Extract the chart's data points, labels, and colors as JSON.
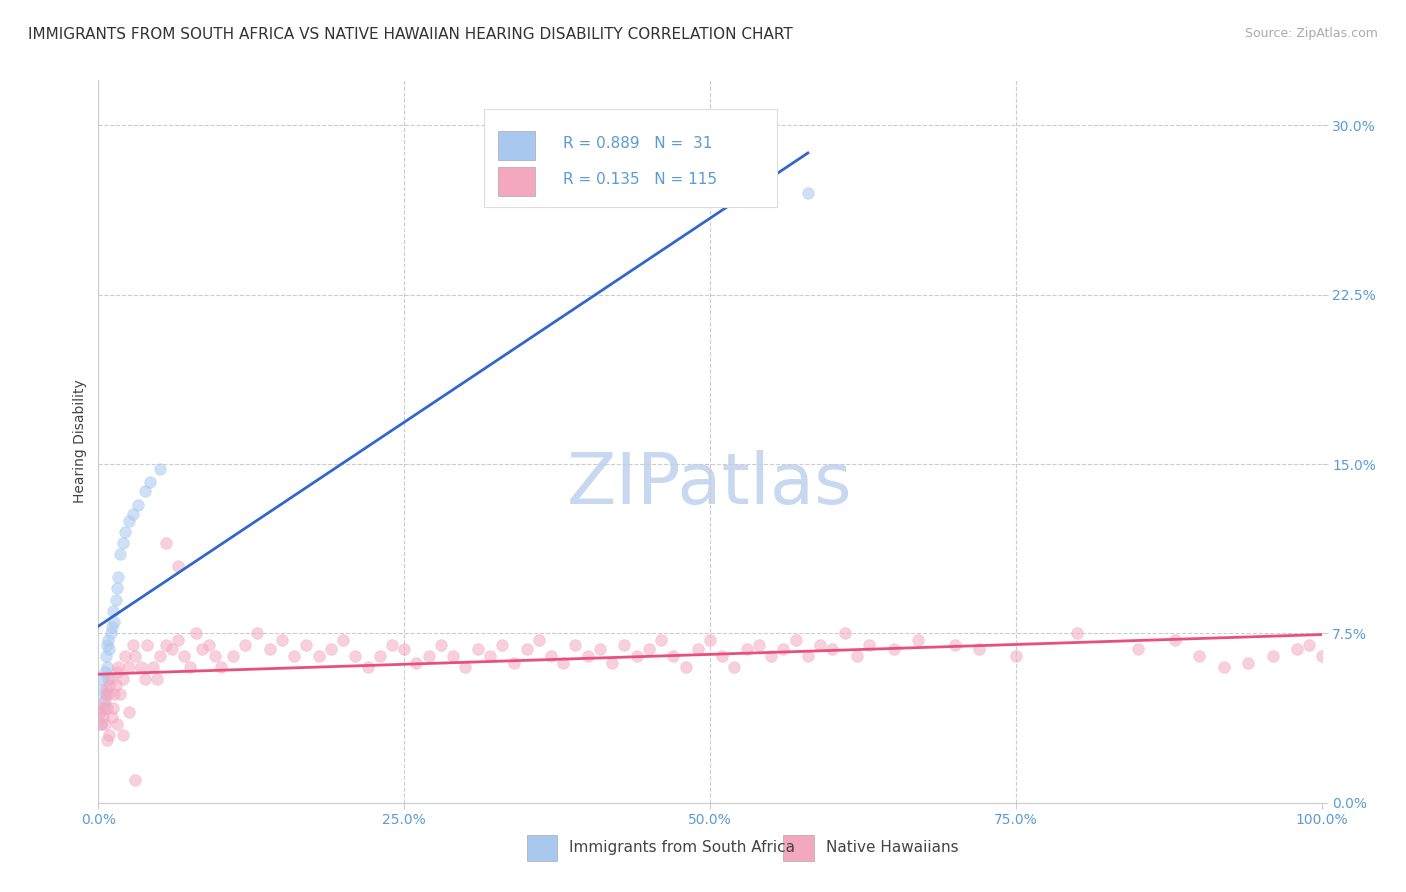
{
  "title": "IMMIGRANTS FROM SOUTH AFRICA VS NATIVE HAWAIIAN HEARING DISABILITY CORRELATION CHART",
  "source": "Source: ZipAtlas.com",
  "ylabel": "Hearing Disability",
  "watermark": "ZIPatlas",
  "xlim": [
    0.0,
    1.0
  ],
  "ylim": [
    0.0,
    0.32
  ],
  "xtick_vals": [
    0.0,
    0.25,
    0.5,
    0.75,
    1.0
  ],
  "xtick_labels": [
    "0.0%",
    "25.0%",
    "50.0%",
    "75.0%",
    "100.0%"
  ],
  "ytick_vals": [
    0.0,
    0.075,
    0.15,
    0.225,
    0.3
  ],
  "ytick_labels": [
    "0.0%",
    "7.5%",
    "15.0%",
    "22.5%",
    "30.0%"
  ],
  "blue_R": 0.889,
  "blue_N": 31,
  "pink_R": 0.135,
  "pink_N": 115,
  "blue_color": "#A8C8F0",
  "pink_color": "#F4A8C0",
  "blue_line_color": "#3366CC",
  "pink_line_color": "#E8507A",
  "legend_label_blue": "Immigrants from South Africa",
  "legend_label_pink": "Native Hawaiians",
  "blue_points_x": [
    0.001,
    0.002,
    0.003,
    0.003,
    0.004,
    0.005,
    0.005,
    0.006,
    0.006,
    0.007,
    0.007,
    0.008,
    0.008,
    0.009,
    0.01,
    0.011,
    0.012,
    0.013,
    0.014,
    0.015,
    0.016,
    0.018,
    0.02,
    0.022,
    0.025,
    0.028,
    0.032,
    0.038,
    0.042,
    0.05,
    0.58
  ],
  "blue_points_y": [
    0.04,
    0.035,
    0.05,
    0.055,
    0.045,
    0.042,
    0.058,
    0.048,
    0.065,
    0.06,
    0.07,
    0.055,
    0.072,
    0.068,
    0.075,
    0.078,
    0.085,
    0.08,
    0.09,
    0.095,
    0.1,
    0.11,
    0.115,
    0.12,
    0.125,
    0.128,
    0.132,
    0.138,
    0.142,
    0.148,
    0.27
  ],
  "pink_points_x": [
    0.001,
    0.002,
    0.003,
    0.004,
    0.005,
    0.006,
    0.007,
    0.008,
    0.009,
    0.01,
    0.011,
    0.012,
    0.013,
    0.014,
    0.015,
    0.016,
    0.018,
    0.02,
    0.022,
    0.025,
    0.028,
    0.03,
    0.035,
    0.038,
    0.04,
    0.045,
    0.048,
    0.05,
    0.055,
    0.06,
    0.065,
    0.07,
    0.075,
    0.08,
    0.085,
    0.09,
    0.095,
    0.1,
    0.11,
    0.12,
    0.13,
    0.14,
    0.15,
    0.16,
    0.17,
    0.18,
    0.19,
    0.2,
    0.21,
    0.22,
    0.23,
    0.24,
    0.25,
    0.26,
    0.27,
    0.28,
    0.29,
    0.3,
    0.31,
    0.32,
    0.33,
    0.34,
    0.35,
    0.36,
    0.37,
    0.38,
    0.39,
    0.4,
    0.41,
    0.42,
    0.43,
    0.44,
    0.45,
    0.46,
    0.47,
    0.48,
    0.49,
    0.5,
    0.51,
    0.52,
    0.53,
    0.54,
    0.55,
    0.56,
    0.57,
    0.58,
    0.59,
    0.6,
    0.61,
    0.62,
    0.63,
    0.65,
    0.67,
    0.7,
    0.72,
    0.75,
    0.8,
    0.85,
    0.88,
    0.9,
    0.92,
    0.94,
    0.96,
    0.98,
    0.99,
    1.0,
    0.005,
    0.007,
    0.009,
    0.015,
    0.02,
    0.025,
    0.055,
    0.065,
    0.03
  ],
  "pink_points_y": [
    0.04,
    0.035,
    0.042,
    0.038,
    0.045,
    0.05,
    0.042,
    0.048,
    0.052,
    0.055,
    0.038,
    0.042,
    0.048,
    0.052,
    0.058,
    0.06,
    0.048,
    0.055,
    0.065,
    0.06,
    0.07,
    0.065,
    0.06,
    0.055,
    0.07,
    0.06,
    0.055,
    0.065,
    0.07,
    0.068,
    0.072,
    0.065,
    0.06,
    0.075,
    0.068,
    0.07,
    0.065,
    0.06,
    0.065,
    0.07,
    0.075,
    0.068,
    0.072,
    0.065,
    0.07,
    0.065,
    0.068,
    0.072,
    0.065,
    0.06,
    0.065,
    0.07,
    0.068,
    0.062,
    0.065,
    0.07,
    0.065,
    0.06,
    0.068,
    0.065,
    0.07,
    0.062,
    0.068,
    0.072,
    0.065,
    0.062,
    0.07,
    0.065,
    0.068,
    0.062,
    0.07,
    0.065,
    0.068,
    0.072,
    0.065,
    0.06,
    0.068,
    0.072,
    0.065,
    0.06,
    0.068,
    0.07,
    0.065,
    0.068,
    0.072,
    0.065,
    0.07,
    0.068,
    0.075,
    0.065,
    0.07,
    0.068,
    0.072,
    0.07,
    0.068,
    0.065,
    0.075,
    0.068,
    0.072,
    0.065,
    0.06,
    0.062,
    0.065,
    0.068,
    0.07,
    0.065,
    0.035,
    0.028,
    0.03,
    0.035,
    0.03,
    0.04,
    0.115,
    0.105,
    0.01
  ],
  "grid_color": "#CCCCCC",
  "background_color": "#FFFFFF",
  "title_fontsize": 11,
  "axis_label_fontsize": 10,
  "tick_fontsize": 10,
  "legend_fontsize": 11,
  "source_fontsize": 9,
  "watermark_fontsize": 52,
  "watermark_color": "#C8D8F0",
  "marker_size": 70,
  "marker_alpha": 0.55
}
